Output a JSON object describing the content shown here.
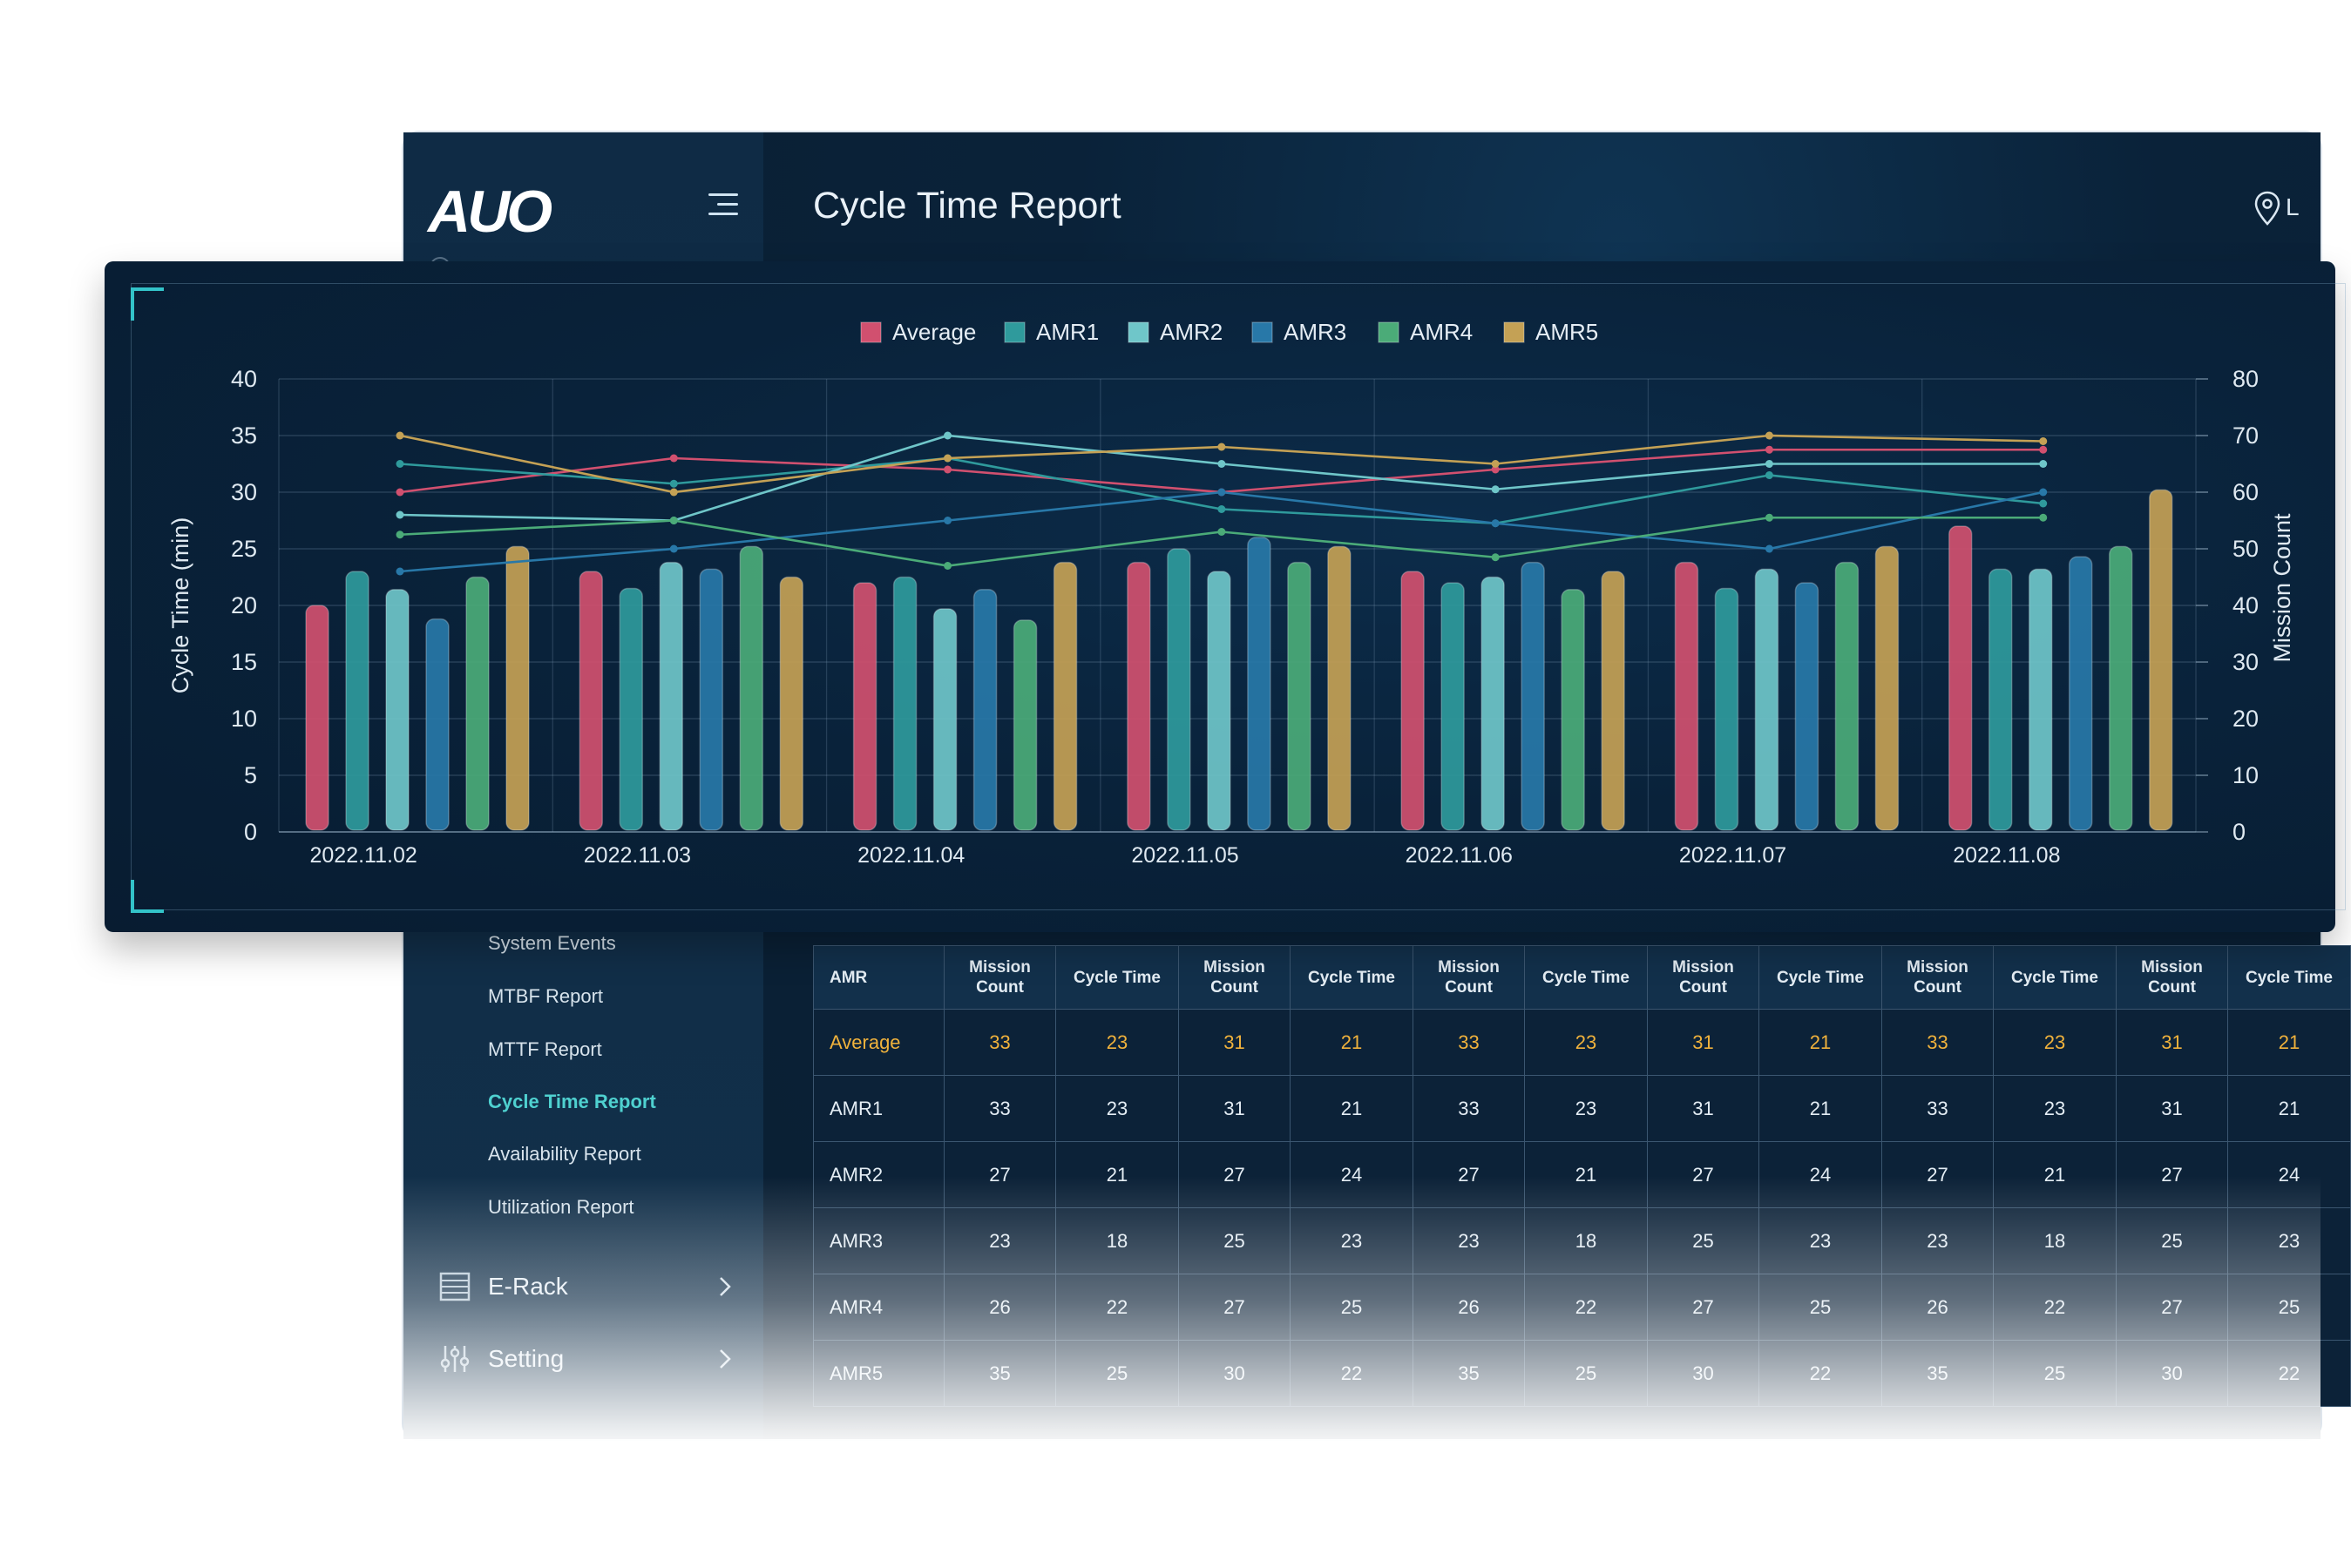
{
  "brand": {
    "logo": "AUO"
  },
  "header": {
    "title": "Cycle Time Report",
    "location_text": "L"
  },
  "sidebar": {
    "report_items": [
      {
        "label": "System Events",
        "active": false
      },
      {
        "label": "MTBF Report",
        "active": false
      },
      {
        "label": "MTTF Report",
        "active": false
      },
      {
        "label": "Cycle Time Report",
        "active": true
      },
      {
        "label": "Availability Report",
        "active": false
      },
      {
        "label": "Utilization Report",
        "active": false
      }
    ],
    "groups": [
      {
        "label": "E-Rack",
        "icon": "rack-icon"
      },
      {
        "label": "Setting",
        "icon": "sliders-icon"
      }
    ]
  },
  "table": {
    "headers": [
      "AMR",
      "Mission Count",
      "Cycle Time",
      "Mission Count",
      "Cycle Time",
      "Mission Count",
      "Cycle Time",
      "Mission Count",
      "Cycle Time",
      "Mission Count",
      "Cycle Time",
      "Mission Count",
      "Cycle Time"
    ],
    "rows": [
      [
        "Average",
        "33",
        "23",
        "31",
        "21",
        "33",
        "23",
        "31",
        "21",
        "33",
        "23",
        "31",
        "21"
      ],
      [
        "AMR1",
        "33",
        "23",
        "31",
        "21",
        "33",
        "23",
        "31",
        "21",
        "33",
        "23",
        "31",
        "21"
      ],
      [
        "AMR2",
        "27",
        "21",
        "27",
        "24",
        "27",
        "21",
        "27",
        "24",
        "27",
        "21",
        "27",
        "24"
      ],
      [
        "AMR3",
        "23",
        "18",
        "25",
        "23",
        "23",
        "18",
        "25",
        "23",
        "23",
        "18",
        "25",
        "23"
      ],
      [
        "AMR4",
        "26",
        "22",
        "27",
        "25",
        "26",
        "22",
        "27",
        "25",
        "26",
        "22",
        "27",
        "25"
      ],
      [
        "AMR5",
        "35",
        "25",
        "30",
        "22",
        "35",
        "25",
        "30",
        "22",
        "35",
        "25",
        "30",
        "22"
      ]
    ]
  },
  "chart_data": {
    "type": "bar+line",
    "categories": [
      "2022.11.02",
      "2022.11.03",
      "2022.11.04",
      "2022.11.05",
      "2022.11.06",
      "2022.11.07",
      "2022.11.08"
    ],
    "ylabel": "Cycle Time (min)",
    "y2label": "Mission Count",
    "ylim": [
      0,
      40
    ],
    "y2lim": [
      0,
      80
    ],
    "yticks": [
      "0",
      "5",
      "10",
      "15",
      "20",
      "25",
      "30",
      "35",
      "40"
    ],
    "y2ticks": [
      "0",
      "10",
      "20",
      "30",
      "40",
      "50",
      "60",
      "70",
      "80"
    ],
    "legend_position": "top-center",
    "series": [
      {
        "name": "Average",
        "color": "#d1506f",
        "bars": [
          20,
          23,
          22,
          23.8,
          23,
          23.8,
          27
        ],
        "line": [
          60,
          66,
          64,
          60,
          64,
          67.5,
          67.5
        ]
      },
      {
        "name": "AMR1",
        "color": "#2f9a9c",
        "bars": [
          23,
          21.5,
          22.5,
          25,
          22,
          21.5,
          23.2
        ],
        "line": [
          65,
          61.5,
          66,
          57,
          54.5,
          63,
          58
        ]
      },
      {
        "name": "AMR2",
        "color": "#6fc6c9",
        "bars": [
          21.4,
          23.8,
          19.7,
          23,
          22.5,
          23.2,
          23.2
        ],
        "line": [
          56,
          55,
          70,
          65,
          60.5,
          65,
          65
        ]
      },
      {
        "name": "AMR3",
        "color": "#2878a8",
        "bars": [
          18.8,
          23.2,
          21.4,
          26,
          23.8,
          22,
          24.3
        ],
        "line": [
          46,
          50,
          55,
          60,
          54.5,
          50,
          60
        ]
      },
      {
        "name": "AMR4",
        "color": "#4bab78",
        "bars": [
          22.5,
          25.2,
          18.7,
          23.8,
          21.4,
          23.8,
          25.2
        ],
        "line": [
          52.5,
          55,
          47,
          53,
          48.5,
          55.5,
          55.5
        ]
      },
      {
        "name": "AMR5",
        "color": "#c4a155",
        "bars": [
          25.2,
          22.5,
          23.8,
          25.2,
          23,
          25.2,
          30.2
        ],
        "line": [
          70,
          60,
          66,
          68,
          65,
          70,
          69
        ]
      }
    ]
  }
}
